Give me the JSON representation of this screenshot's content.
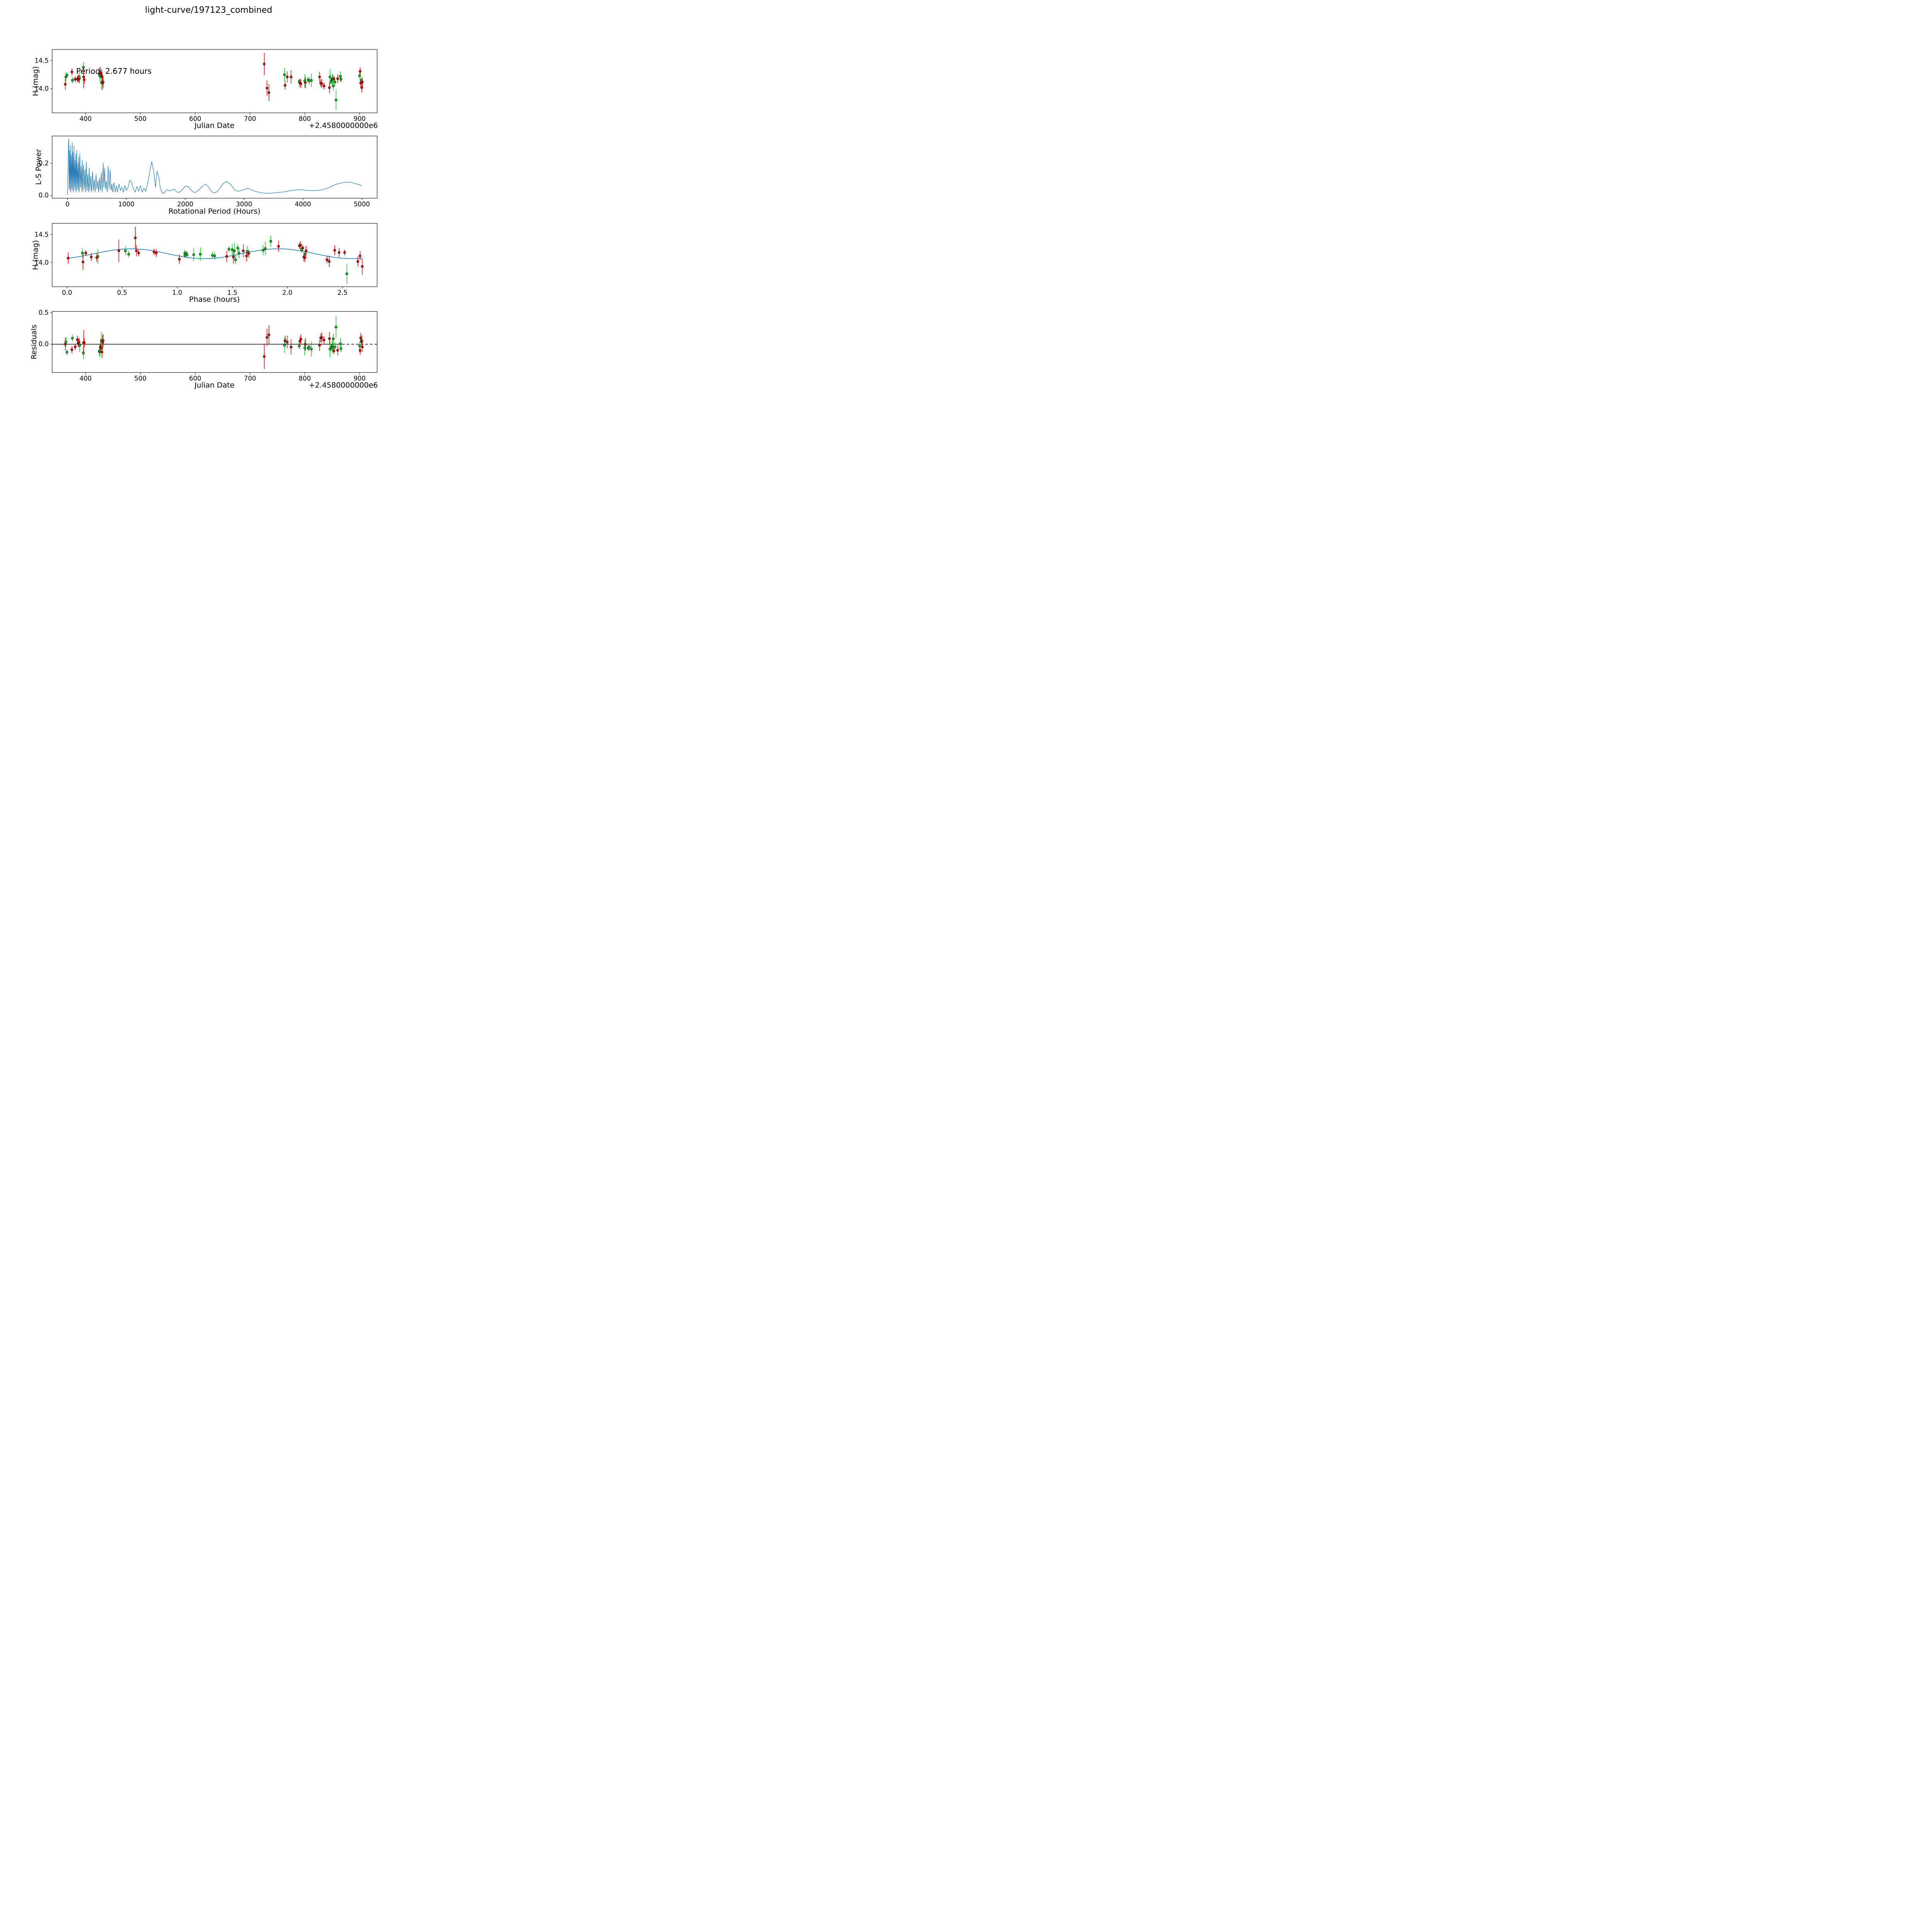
{
  "title": "light-curve/197123_combined",
  "annotation": "Period: 2.677 hours",
  "colors": {
    "red": "#ff0000",
    "green": "#00d41f",
    "fit_blue": "#1f77b4",
    "axis_black": "#000000",
    "background": "#ffffff"
  },
  "labels": {
    "p1_xlabel": "Julian Date",
    "p1_ylabel": "H (mag)",
    "p1_offset": "+2.4580000000e6",
    "p2_xlabel": "Rotational Period (Hours)",
    "p2_ylabel": "L-S Power",
    "p3_xlabel": "Phase (hours)",
    "p3_ylabel": "H (mag)",
    "p4_xlabel": "Julian Date",
    "p4_ylabel": "Residuals",
    "p4_offset": "+2.4580000000e6"
  },
  "fit": {
    "rotation_period_hours": 2.677,
    "fold_period_hours": 1.3385,
    "mean_mag": 14.158,
    "amplitude_mag": 0.088,
    "phase_of_max_hours": 0.58
  },
  "points": [
    [
      363.0,
      0.01,
      14.08,
      0.1,
      "r"
    ],
    [
      364.0,
      0.53,
      14.21,
      0.08,
      "g"
    ],
    [
      366.0,
      1.47,
      14.24,
      0.05,
      "g"
    ],
    [
      375.0,
      2.11,
      14.3,
      0.06,
      "r"
    ],
    [
      376.0,
      0.56,
      14.15,
      0.06,
      "g"
    ],
    [
      381.0,
      0.17,
      14.17,
      0.05,
      "r"
    ],
    [
      385.0,
      0.65,
      14.17,
      0.06,
      "r"
    ],
    [
      386.5,
      0.79,
      14.19,
      0.06,
      "r"
    ],
    [
      388.0,
      0.81,
      14.17,
      0.07,
      "r"
    ],
    [
      389.0,
      1.635,
      14.2,
      0.1,
      "g"
    ],
    [
      396.0,
      1.85,
      14.38,
      0.1,
      "g"
    ],
    [
      396.5,
      0.47,
      14.21,
      0.2,
      "r"
    ],
    [
      397.5,
      1.65,
      14.16,
      0.07,
      "r"
    ],
    [
      425.0,
      1.55,
      14.26,
      0.07,
      "g"
    ],
    [
      426.0,
      1.5,
      14.23,
      0.1,
      "g"
    ],
    [
      427.0,
      1.92,
      14.29,
      0.1,
      "r"
    ],
    [
      428.0,
      2.14,
      14.26,
      0.06,
      "r"
    ],
    [
      429.0,
      0.28,
      14.11,
      0.13,
      "g"
    ],
    [
      430.0,
      2.43,
      14.22,
      0.09,
      "r"
    ],
    [
      431.0,
      1.51,
      14.1,
      0.12,
      "r"
    ],
    [
      432.0,
      1.63,
      14.12,
      0.1,
      "r"
    ],
    [
      726.0,
      0.62,
      14.44,
      0.2,
      "r"
    ],
    [
      731.0,
      0.145,
      14.01,
      0.14,
      "r"
    ],
    [
      734.5,
      2.68,
      13.93,
      0.15,
      "r"
    ],
    [
      763.0,
      1.8,
      14.25,
      0.12,
      "g"
    ],
    [
      764.0,
      1.02,
      14.06,
      0.08,
      "r"
    ],
    [
      768.0,
      0.63,
      14.21,
      0.1,
      "r"
    ],
    [
      775.0,
      1.6,
      14.21,
      0.12,
      "r"
    ],
    [
      790.0,
      1.07,
      14.13,
      0.05,
      "g"
    ],
    [
      791.0,
      0.22,
      14.1,
      0.07,
      "r"
    ],
    [
      793.0,
      0.27,
      14.09,
      0.08,
      "r"
    ],
    [
      800.0,
      1.15,
      14.14,
      0.12,
      "g"
    ],
    [
      801.0,
      1.45,
      14.11,
      0.1,
      "r"
    ],
    [
      806.0,
      1.08,
      14.16,
      0.05,
      "g"
    ],
    [
      808.0,
      1.09,
      14.14,
      0.06,
      "g"
    ],
    [
      812.0,
      1.21,
      14.15,
      0.12,
      "g"
    ],
    [
      827.0,
      2.17,
      14.21,
      0.09,
      "r"
    ],
    [
      829.0,
      2.15,
      14.1,
      0.07,
      "r"
    ],
    [
      831.0,
      2.16,
      14.09,
      0.08,
      "r"
    ],
    [
      835.0,
      2.36,
      14.05,
      0.06,
      "r"
    ],
    [
      845.0,
      2.38,
      14.02,
      0.1,
      "r"
    ],
    [
      846.0,
      1.52,
      14.21,
      0.14,
      "g"
    ],
    [
      848.0,
      1.32,
      14.13,
      0.06,
      "g"
    ],
    [
      850.0,
      1.56,
      14.17,
      0.09,
      "g"
    ],
    [
      851.0,
      0.14,
      14.17,
      0.09,
      "g"
    ],
    [
      852.0,
      1.53,
      14.05,
      0.08,
      "g"
    ],
    [
      853.0,
      2.52,
      14.18,
      0.05,
      "r"
    ],
    [
      855.0,
      1.34,
      14.12,
      0.07,
      "g"
    ],
    [
      857.0,
      2.54,
      13.8,
      0.18,
      "g"
    ],
    [
      860.0,
      2.47,
      14.18,
      0.08,
      "r"
    ],
    [
      865.0,
      1.78,
      14.22,
      0.09,
      "g"
    ],
    [
      866.0,
      1.07,
      14.17,
      0.06,
      "g"
    ],
    [
      900.0,
      2.13,
      14.23,
      0.06,
      "g"
    ],
    [
      901.0,
      2.12,
      14.31,
      0.07,
      "r"
    ],
    [
      902.0,
      2.15,
      14.1,
      0.08,
      "r"
    ],
    [
      903.0,
      2.16,
      14.15,
      0.06,
      "g"
    ],
    [
      904.0,
      2.64,
      14.02,
      0.09,
      "r"
    ],
    [
      905.0,
      2.66,
      14.12,
      0.08,
      "r"
    ]
  ],
  "periodogram": [
    [
      0,
      0.002
    ],
    [
      15,
      0.3
    ],
    [
      22,
      0.352
    ],
    [
      28,
      0.04
    ],
    [
      35,
      0.28
    ],
    [
      42,
      0.03
    ],
    [
      50,
      0.31
    ],
    [
      58,
      0.02
    ],
    [
      65,
      0.25
    ],
    [
      72,
      0.04
    ],
    [
      80,
      0.33
    ],
    [
      88,
      0.03
    ],
    [
      95,
      0.27
    ],
    [
      103,
      0.02
    ],
    [
      110,
      0.31
    ],
    [
      118,
      0.05
    ],
    [
      126,
      0.22
    ],
    [
      134,
      0.03
    ],
    [
      142,
      0.26
    ],
    [
      150,
      0.02
    ],
    [
      158,
      0.28
    ],
    [
      166,
      0.04
    ],
    [
      175,
      0.2
    ],
    [
      184,
      0.03
    ],
    [
      192,
      0.24
    ],
    [
      200,
      0.02
    ],
    [
      210,
      0.26
    ],
    [
      220,
      0.05
    ],
    [
      230,
      0.18
    ],
    [
      240,
      0.03
    ],
    [
      250,
      0.22
    ],
    [
      260,
      0.02
    ],
    [
      272,
      0.19
    ],
    [
      284,
      0.04
    ],
    [
      296,
      0.16
    ],
    [
      308,
      0.02
    ],
    [
      320,
      0.21
    ],
    [
      332,
      0.03
    ],
    [
      344,
      0.13
    ],
    [
      356,
      0.02
    ],
    [
      368,
      0.17
    ],
    [
      380,
      0.03
    ],
    [
      395,
      0.12
    ],
    [
      410,
      0.02
    ],
    [
      425,
      0.15
    ],
    [
      440,
      0.03
    ],
    [
      455,
      0.1
    ],
    [
      470,
      0.02
    ],
    [
      485,
      0.13
    ],
    [
      500,
      0.04
    ],
    [
      515,
      0.09
    ],
    [
      530,
      0.02
    ],
    [
      545,
      0.11
    ],
    [
      560,
      0.03
    ],
    [
      575,
      0.14
    ],
    [
      590,
      0.02
    ],
    [
      605,
      0.2
    ],
    [
      618,
      0.05
    ],
    [
      630,
      0.17
    ],
    [
      645,
      0.04
    ],
    [
      660,
      0.09
    ],
    [
      675,
      0.02
    ],
    [
      692,
      0.18
    ],
    [
      708,
      0.04
    ],
    [
      725,
      0.16
    ],
    [
      740,
      0.03
    ],
    [
      755,
      0.07
    ],
    [
      770,
      0.02
    ],
    [
      790,
      0.08
    ],
    [
      810,
      0.02
    ],
    [
      830,
      0.06
    ],
    [
      850,
      0.02
    ],
    [
      875,
      0.07
    ],
    [
      900,
      0.03
    ],
    [
      925,
      0.05
    ],
    [
      950,
      0.02
    ],
    [
      975,
      0.06
    ],
    [
      1000,
      0.03
    ],
    [
      1030,
      0.05
    ],
    [
      1060,
      0.095
    ],
    [
      1090,
      0.08
    ],
    [
      1120,
      0.04
    ],
    [
      1150,
      0.02
    ],
    [
      1180,
      0.055
    ],
    [
      1210,
      0.025
    ],
    [
      1240,
      0.06
    ],
    [
      1270,
      0.02
    ],
    [
      1300,
      0.045
    ],
    [
      1330,
      0.025
    ],
    [
      1360,
      0.07
    ],
    [
      1395,
      0.14
    ],
    [
      1430,
      0.21
    ],
    [
      1465,
      0.15
    ],
    [
      1495,
      0.05
    ],
    [
      1520,
      0.15
    ],
    [
      1550,
      0.115
    ],
    [
      1580,
      0.04
    ],
    [
      1615,
      0.012
    ],
    [
      1650,
      0.018
    ],
    [
      1690,
      0.035
    ],
    [
      1730,
      0.028
    ],
    [
      1770,
      0.032
    ],
    [
      1810,
      0.04
    ],
    [
      1850,
      0.022
    ],
    [
      1890,
      0.018
    ],
    [
      1930,
      0.028
    ],
    [
      1970,
      0.045
    ],
    [
      2010,
      0.058
    ],
    [
      2050,
      0.055
    ],
    [
      2090,
      0.038
    ],
    [
      2130,
      0.022
    ],
    [
      2170,
      0.018
    ],
    [
      2210,
      0.028
    ],
    [
      2250,
      0.04
    ],
    [
      2300,
      0.06
    ],
    [
      2350,
      0.07
    ],
    [
      2400,
      0.05
    ],
    [
      2450,
      0.022
    ],
    [
      2500,
      0.016
    ],
    [
      2550,
      0.025
    ],
    [
      2600,
      0.05
    ],
    [
      2650,
      0.075
    ],
    [
      2700,
      0.085
    ],
    [
      2750,
      0.075
    ],
    [
      2800,
      0.055
    ],
    [
      2850,
      0.03
    ],
    [
      2900,
      0.025
    ],
    [
      2950,
      0.03
    ],
    [
      3000,
      0.035
    ],
    [
      3060,
      0.045
    ],
    [
      3120,
      0.035
    ],
    [
      3180,
      0.025
    ],
    [
      3250,
      0.02
    ],
    [
      3320,
      0.015
    ],
    [
      3400,
      0.012
    ],
    [
      3480,
      0.014
    ],
    [
      3560,
      0.018
    ],
    [
      3640,
      0.02
    ],
    [
      3720,
      0.024
    ],
    [
      3800,
      0.03
    ],
    [
      3880,
      0.034
    ],
    [
      3960,
      0.035
    ],
    [
      4040,
      0.032
    ],
    [
      4120,
      0.03
    ],
    [
      4200,
      0.03
    ],
    [
      4280,
      0.032
    ],
    [
      4360,
      0.038
    ],
    [
      4440,
      0.048
    ],
    [
      4520,
      0.062
    ],
    [
      4600,
      0.073
    ],
    [
      4680,
      0.08
    ],
    [
      4760,
      0.082
    ],
    [
      4840,
      0.079
    ],
    [
      4920,
      0.07
    ],
    [
      5000,
      0.06
    ]
  ],
  "chart_data": [
    {
      "id": "jd_magnitude",
      "type": "scatter",
      "title": "light-curve/197123_combined",
      "xlabel": "Julian Date",
      "ylabel": "H (mag)",
      "x_offset_label": "+2.4580000000e6",
      "annotation": "Period: 2.677 hours",
      "size": [
        841,
        164
      ],
      "xlim": [
        339,
        932
      ],
      "ylim": [
        13.57,
        14.7
      ],
      "xticks": [
        400,
        500,
        600,
        700,
        800,
        900
      ],
      "xtick_labels": [
        "400",
        "500",
        "600",
        "700",
        "800",
        "900"
      ],
      "yticks": [
        14.0,
        14.5
      ],
      "ytick_labels": [
        "14.0",
        "14.5"
      ],
      "x_key": "jd",
      "y_key": "mag",
      "grid": false,
      "legend": null
    },
    {
      "id": "ls_periodogram",
      "type": "line",
      "xlabel": "Rotational Period (Hours)",
      "ylabel": "L-S Power",
      "size": [
        841,
        161
      ],
      "xlim": [
        -260,
        5260
      ],
      "ylim": [
        -0.018,
        0.37
      ],
      "xticks": [
        0,
        1000,
        2000,
        3000,
        4000,
        5000
      ],
      "xtick_labels": [
        "0",
        "1000",
        "2000",
        "3000",
        "4000",
        "5000"
      ],
      "yticks": [
        0.0,
        0.2
      ],
      "ytick_labels": [
        "0.0",
        "0.2"
      ],
      "series": "periodogram",
      "grid": false,
      "legend": null
    },
    {
      "id": "phase_magnitude",
      "type": "scatter",
      "xlabel": "Phase (hours)",
      "ylabel": "H (mag)",
      "size": [
        841,
        164
      ],
      "xlim": [
        -0.135,
        2.815
      ],
      "ylim": [
        13.57,
        14.7
      ],
      "xticks": [
        0.0,
        0.5,
        1.0,
        1.5,
        2.0,
        2.5
      ],
      "xtick_labels": [
        "0.0",
        "0.5",
        "1.0",
        "1.5",
        "2.0",
        "2.5"
      ],
      "yticks": [
        14.0,
        14.5
      ],
      "ytick_labels": [
        "14.0",
        "14.5"
      ],
      "x_key": "phase",
      "y_key": "mag",
      "fit_line": true,
      "fit_range": [
        0.0,
        2.68
      ],
      "grid": false,
      "legend": null
    },
    {
      "id": "residuals",
      "type": "scatter",
      "xlabel": "Julian Date",
      "ylabel": "Residuals",
      "x_offset_label": "+2.4580000000e6",
      "size": [
        841,
        158
      ],
      "xlim": [
        339,
        932
      ],
      "ylim": [
        -0.45,
        0.52
      ],
      "xticks": [
        400,
        500,
        600,
        700,
        800,
        900
      ],
      "xtick_labels": [
        "400",
        "500",
        "600",
        "700",
        "800",
        "900"
      ],
      "yticks": [
        0.0,
        0.5
      ],
      "ytick_labels": [
        "0.0",
        "0.5"
      ],
      "x_key": "jd",
      "y_key": "residual",
      "hline": 0,
      "hline_solid_to_x": 868,
      "grid": false,
      "legend": null
    }
  ]
}
